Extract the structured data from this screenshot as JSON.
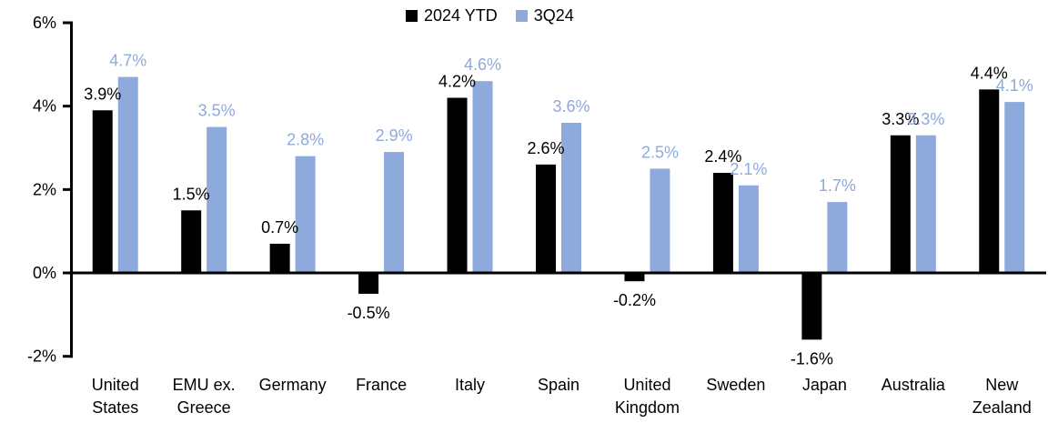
{
  "chart_data": {
    "type": "bar",
    "title": "",
    "xlabel": "",
    "ylabel": "",
    "categories": [
      "United States",
      "EMU ex. Greece",
      "Germany",
      "France",
      "Italy",
      "Spain",
      "United Kingdom",
      "Sweden",
      "Japan",
      "Australia",
      "New Zealand"
    ],
    "series": [
      {
        "name": "2024 YTD",
        "color": "#000000",
        "values": [
          3.9,
          1.5,
          0.7,
          -0.5,
          4.2,
          2.6,
          -0.2,
          2.4,
          -1.6,
          3.3,
          4.4
        ]
      },
      {
        "name": "3Q24",
        "color": "#8EA9DB",
        "values": [
          4.7,
          3.5,
          2.8,
          2.9,
          4.6,
          3.6,
          2.5,
          2.1,
          1.7,
          3.3,
          4.1
        ]
      }
    ],
    "value_label_suffix": "%",
    "value_labels": {
      "2024 YTD": [
        "3.9%",
        "1.5%",
        "0.7%",
        "-0.5%",
        "4.2%",
        "2.6%",
        "-0.2%",
        "2.4%",
        "-1.6%",
        "3.3%",
        "4.4%"
      ],
      "3Q24": [
        "4.7%",
        "3.5%",
        "2.8%",
        "2.9%",
        "4.6%",
        "3.6%",
        "2.5%",
        "2.1%",
        "1.7%",
        "3.3%",
        "4.1%"
      ]
    },
    "ylim": [
      -2,
      6
    ],
    "yticks": [
      {
        "value": 6,
        "label": "6%"
      },
      {
        "value": 4,
        "label": "4%"
      },
      {
        "value": 2,
        "label": "2%"
      },
      {
        "value": 0,
        "label": "0%"
      },
      {
        "value": -2,
        "label": "-2%"
      }
    ],
    "grid": false,
    "legend_position": "top-center",
    "axis_color": "#000000",
    "background_color": "#FFFFFF"
  }
}
